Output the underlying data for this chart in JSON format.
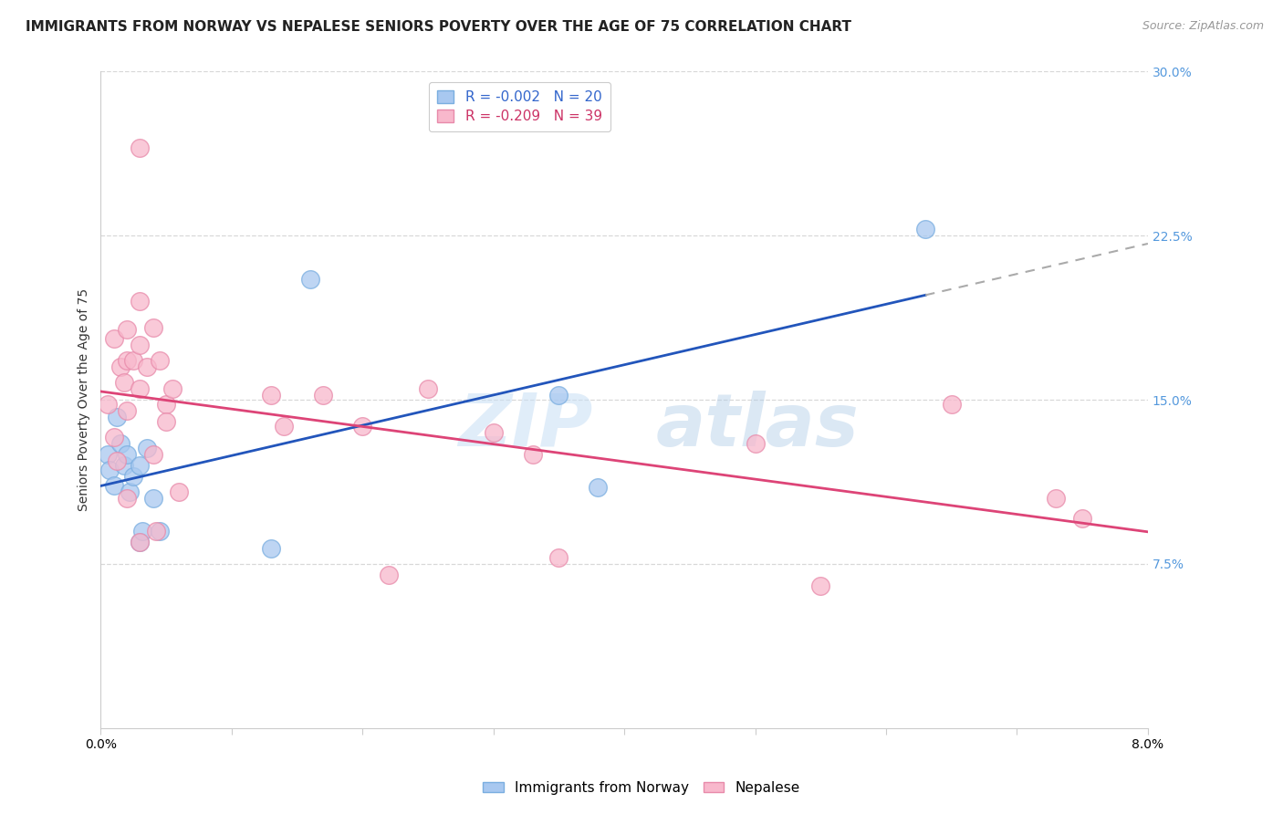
{
  "title": "IMMIGRANTS FROM NORWAY VS NEPALESE SENIORS POVERTY OVER THE AGE OF 75 CORRELATION CHART",
  "source": "Source: ZipAtlas.com",
  "ylabel": "Seniors Poverty Over the Age of 75",
  "xmin": 0.0,
  "xmax": 0.08,
  "ymin": 0.0,
  "ymax": 0.3,
  "yticks": [
    0.075,
    0.15,
    0.225,
    0.3
  ],
  "ytick_labels": [
    "7.5%",
    "15.0%",
    "22.5%",
    "30.0%"
  ],
  "xticks": [
    0.0,
    0.01,
    0.02,
    0.03,
    0.04,
    0.05,
    0.06,
    0.07,
    0.08
  ],
  "xtick_labels": [
    "0.0%",
    "",
    "",
    "",
    "",
    "",
    "",
    "",
    "8.0%"
  ],
  "grid_color": "#d8d8d8",
  "background_color": "#ffffff",
  "watermark_zip": "ZIP",
  "watermark_atlas": "atlas",
  "norway_color": "#a8c8f0",
  "norway_edge_color": "#7aaee0",
  "nepalese_color": "#f8b8cc",
  "nepalese_edge_color": "#e88aaa",
  "norway_label": "Immigrants from Norway",
  "nepalese_label": "Nepalese",
  "norway_R": -0.002,
  "norway_N": 20,
  "nepalese_R": -0.209,
  "nepalese_N": 39,
  "norway_line_color": "#2255bb",
  "nepalese_line_color": "#dd4477",
  "dashed_line_color": "#aaaaaa",
  "norway_scatter_x": [
    0.0005,
    0.0007,
    0.001,
    0.0012,
    0.0015,
    0.0018,
    0.002,
    0.0022,
    0.0025,
    0.003,
    0.003,
    0.0032,
    0.0035,
    0.004,
    0.0045,
    0.013,
    0.016,
    0.035,
    0.038,
    0.063
  ],
  "norway_scatter_y": [
    0.125,
    0.118,
    0.111,
    0.142,
    0.13,
    0.12,
    0.125,
    0.108,
    0.115,
    0.12,
    0.085,
    0.09,
    0.128,
    0.105,
    0.09,
    0.082,
    0.205,
    0.152,
    0.11,
    0.228
  ],
  "nepalese_scatter_x": [
    0.0005,
    0.001,
    0.001,
    0.0012,
    0.0015,
    0.0018,
    0.002,
    0.002,
    0.002,
    0.002,
    0.0025,
    0.003,
    0.003,
    0.003,
    0.003,
    0.003,
    0.0035,
    0.004,
    0.004,
    0.0042,
    0.0045,
    0.005,
    0.005,
    0.0055,
    0.006,
    0.013,
    0.014,
    0.017,
    0.02,
    0.022,
    0.025,
    0.03,
    0.033,
    0.035,
    0.05,
    0.055,
    0.065,
    0.073,
    0.075
  ],
  "nepalese_scatter_y": [
    0.148,
    0.133,
    0.178,
    0.122,
    0.165,
    0.158,
    0.182,
    0.168,
    0.145,
    0.105,
    0.168,
    0.265,
    0.195,
    0.175,
    0.155,
    0.085,
    0.165,
    0.183,
    0.125,
    0.09,
    0.168,
    0.148,
    0.14,
    0.155,
    0.108,
    0.152,
    0.138,
    0.152,
    0.138,
    0.07,
    0.155,
    0.135,
    0.125,
    0.078,
    0.13,
    0.065,
    0.148,
    0.105,
    0.096
  ],
  "title_fontsize": 11,
  "source_fontsize": 9,
  "axis_label_fontsize": 10,
  "tick_fontsize": 10,
  "legend_fontsize": 11
}
